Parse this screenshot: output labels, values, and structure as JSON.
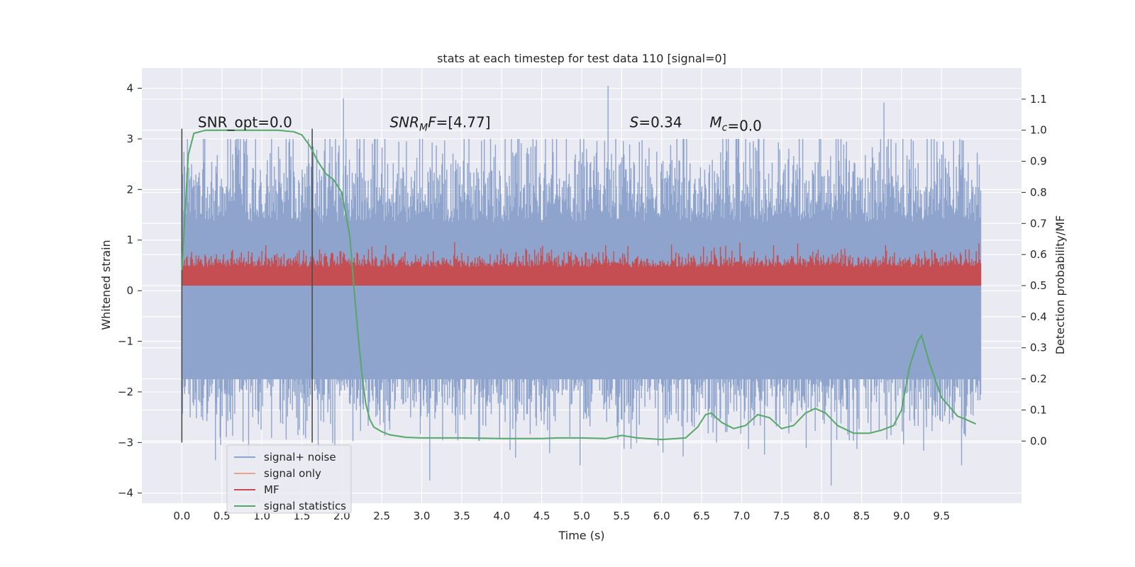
{
  "chart_data": {
    "type": "line",
    "title": "stats at each timestep for test data 110 [signal=0]",
    "xlabel": "Time (s)",
    "ylabel_left": "Whitened strain",
    "ylabel_right": "Detection probability/MF",
    "xlim": [
      -0.5,
      10.5
    ],
    "ylim_left": [
      -4.2,
      4.4
    ],
    "ylim_right": [
      -0.2,
      1.2
    ],
    "xticks": [
      0.0,
      0.5,
      1.0,
      1.5,
      2.0,
      2.5,
      3.0,
      3.5,
      4.0,
      4.5,
      5.0,
      5.5,
      6.0,
      6.5,
      7.0,
      7.5,
      8.0,
      8.5,
      9.0,
      9.5
    ],
    "xtick_labels": [
      "0.0",
      "0.5",
      "1.0",
      "1.5",
      "2.0",
      "2.5",
      "3.0",
      "3.5",
      "4.0",
      "4.5",
      "5.0",
      "5.5",
      "6.0",
      "6.5",
      "7.0",
      "7.5",
      "8.0",
      "8.5",
      "9.0",
      "9.5"
    ],
    "yticks_left": [
      4,
      3,
      2,
      1,
      0,
      -1,
      -2,
      -3,
      -4
    ],
    "yticks_left_labels": [
      "4",
      "3",
      "2",
      "1",
      "0",
      "−1",
      "−2",
      "−3",
      "−4"
    ],
    "yticks_right": [
      1.1,
      1.0,
      0.9,
      0.8,
      0.7,
      0.6,
      0.5,
      0.4,
      0.3,
      0.2,
      0.1,
      0.0
    ],
    "yticks_right_labels": [
      "1.1",
      "1.0",
      "0.9",
      "0.8",
      "0.7",
      "0.6",
      "0.5",
      "0.4",
      "0.3",
      "0.2",
      "0.1",
      "0.0"
    ],
    "grid": true,
    "legend_position": "lower-left",
    "colors": {
      "signal_noise": "#8ea4cc",
      "signal_only": "#e8a488",
      "mf": "#c44e52",
      "signal_statistics": "#55a868",
      "vline": "#4d4d4d",
      "axes_bg": "#eaeaf2"
    },
    "series": [
      {
        "name": "signal+ noise",
        "axis": "left",
        "x_range": [
          0.0,
          9.99
        ],
        "envelope": {
          "typical_low": -1.75,
          "typical_high": 1.35
        },
        "notable_extremes": [
          {
            "x": 2.02,
            "y": 3.8
          },
          {
            "x": 5.33,
            "y": 4.05
          },
          {
            "x": 8.78,
            "y": 3.72
          },
          {
            "x": 3.1,
            "y": -3.75
          },
          {
            "x": 8.12,
            "y": -3.85
          },
          {
            "x": 0.42,
            "y": -3.35
          },
          {
            "x": 9.75,
            "y": -3.45
          },
          {
            "x": 4.98,
            "y": -3.45
          }
        ]
      },
      {
        "name": "signal only",
        "axis": "left",
        "x": [],
        "y": []
      },
      {
        "name": "MF",
        "axis": "right",
        "x_range": [
          0.0,
          9.99
        ],
        "band": [
          0.5,
          0.56
        ],
        "peak": 0.65
      },
      {
        "name": "signal statistics",
        "axis": "right",
        "x": [
          0.0,
          0.08,
          0.15,
          0.3,
          0.5,
          0.8,
          1.0,
          1.2,
          1.4,
          1.5,
          1.6,
          1.7,
          1.8,
          1.9,
          2.0,
          2.1,
          2.15,
          2.2,
          2.25,
          2.3,
          2.35,
          2.4,
          2.5,
          2.6,
          2.8,
          3.0,
          3.5,
          4.0,
          4.5,
          4.7,
          5.0,
          5.3,
          5.5,
          5.7,
          6.0,
          6.3,
          6.45,
          6.55,
          6.62,
          6.75,
          6.9,
          7.05,
          7.2,
          7.35,
          7.5,
          7.65,
          7.8,
          7.92,
          8.05,
          8.2,
          8.4,
          8.6,
          8.75,
          8.9,
          9.0,
          9.1,
          9.2,
          9.25,
          9.35,
          9.5,
          9.7,
          9.8,
          9.93
        ],
        "y": [
          0.55,
          0.92,
          0.99,
          1.0,
          1.0,
          1.0,
          1.0,
          1.0,
          0.995,
          0.985,
          0.95,
          0.9,
          0.86,
          0.84,
          0.8,
          0.66,
          0.5,
          0.35,
          0.22,
          0.12,
          0.07,
          0.045,
          0.03,
          0.02,
          0.012,
          0.01,
          0.01,
          0.008,
          0.008,
          0.01,
          0.01,
          0.008,
          0.018,
          0.01,
          0.005,
          0.01,
          0.045,
          0.085,
          0.09,
          0.06,
          0.04,
          0.05,
          0.085,
          0.075,
          0.04,
          0.05,
          0.09,
          0.105,
          0.09,
          0.05,
          0.025,
          0.025,
          0.035,
          0.05,
          0.1,
          0.24,
          0.32,
          0.34,
          0.25,
          0.14,
          0.08,
          0.07,
          0.055
        ]
      }
    ],
    "vlines": [
      {
        "x": 0.0,
        "y_range": [
          -3.0,
          3.2
        ]
      },
      {
        "x": 1.63,
        "y_range": [
          -3.0,
          3.2
        ]
      }
    ],
    "annotations": [
      {
        "text": "SNR_opt=0.0",
        "x": 0.2,
        "y": 3.2
      },
      {
        "text": "SNR",
        "sub": "M",
        "suffix": "F=[4.77]",
        "x": 2.6,
        "y": 3.2
      },
      {
        "text": "S",
        "suffix": "=0.34",
        "x": 5.6,
        "y": 3.2
      },
      {
        "text": "M",
        "sub": "c",
        "suffix": "=0.0",
        "x": 6.6,
        "y": 3.2
      }
    ],
    "legend": [
      "signal+ noise",
      "signal only",
      "MF",
      "signal statistics"
    ]
  }
}
